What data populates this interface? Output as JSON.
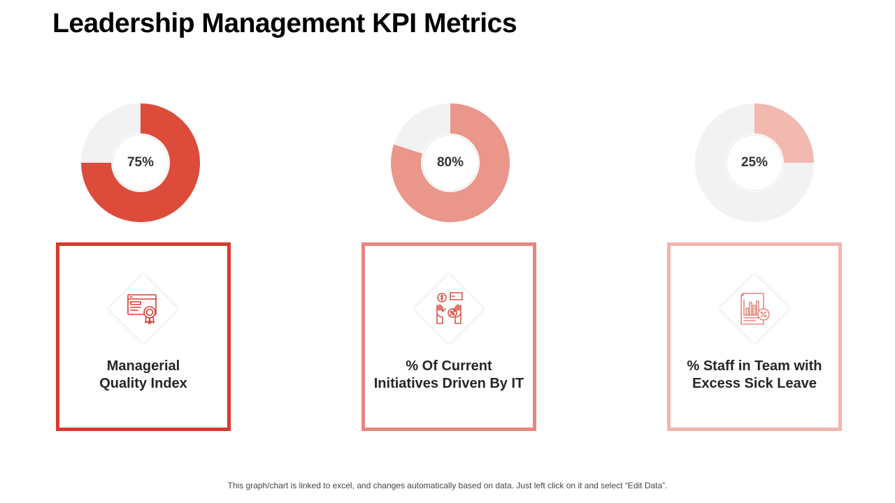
{
  "title": "Leadership Management KPI Metrics",
  "chart_data": [
    {
      "type": "pie",
      "value": 75,
      "label": "75%",
      "caption": "Managerial Quality Index",
      "color": "#dd4b3b",
      "track": "#f2f2f2",
      "border": "#d63b2e"
    },
    {
      "type": "pie",
      "value": 80,
      "label": "80%",
      "caption": "% Of Current Initiatives Driven By IT",
      "color": "#ea968b",
      "track": "#f2f2f2",
      "border": "#e4877d"
    },
    {
      "type": "pie",
      "value": 25,
      "label": "25%",
      "caption": "% Staff in Team with Excess Sick Leave",
      "color": "#f2b9b1",
      "track": "#f2f2f2",
      "border": "#f2b5ad"
    }
  ],
  "cards": [
    {
      "line1": "Managerial",
      "line2": "Quality Index",
      "icon": "certificate-icon"
    },
    {
      "line1": "% Of Current",
      "line2": "Initiatives Driven By IT",
      "icon": "hands-money-percent-icon"
    },
    {
      "line1": "% Staff in Team with",
      "line2": "Excess Sick Leave",
      "icon": "report-percent-icon"
    }
  ],
  "footnote": "This graph/chart is linked to excel, and changes automatically based on data. Just left click on it and select “Edit Data”."
}
